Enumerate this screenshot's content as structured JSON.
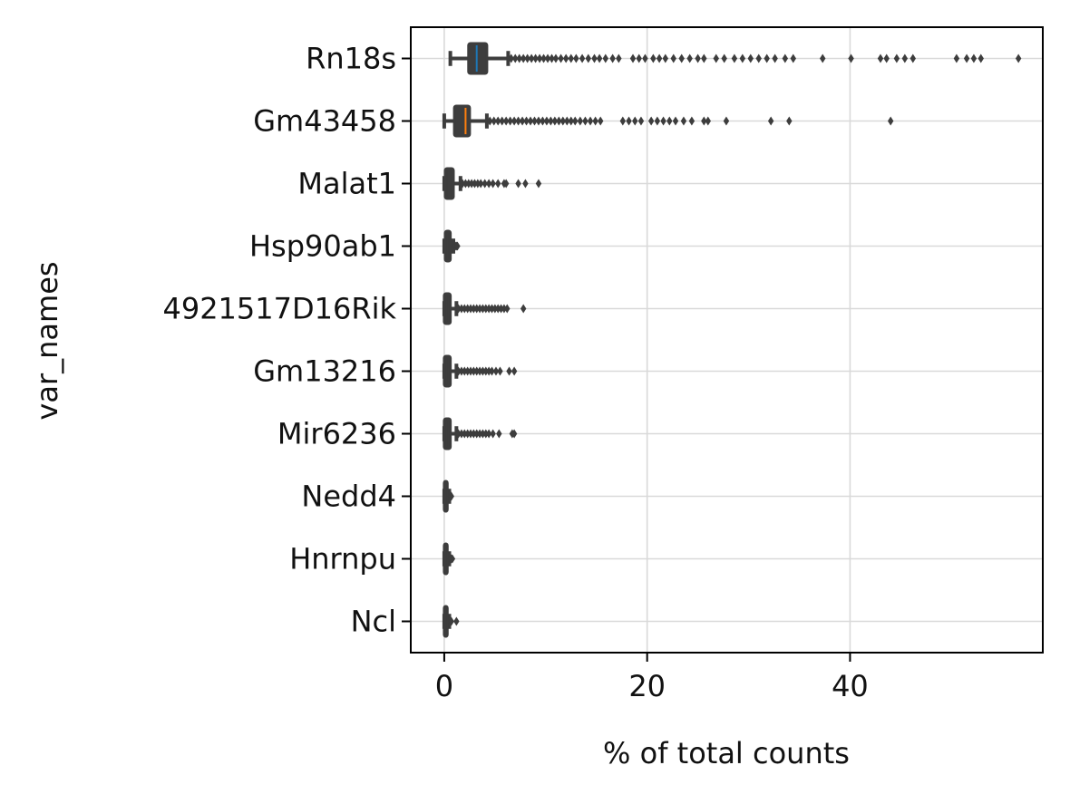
{
  "chart_data": {
    "type": "box",
    "orientation": "horizontal",
    "xlabel": "% of total counts",
    "ylabel": "var_names",
    "xlim": [
      -3.3,
      59.0
    ],
    "xticks": [
      0,
      20,
      40
    ],
    "grid": true,
    "colors": {
      "box": "#3d3d3d",
      "Rn18s_median": "#1f77b4",
      "Gm43458_median": "#ff7f0e",
      "grid": "#d9d9d9",
      "flier": "#3d3d3d"
    },
    "categories": [
      "Rn18s",
      "Gm43458",
      "Malat1",
      "Hsp90ab1",
      "4921517D16Rik",
      "Gm13216",
      "Mir6236",
      "Nedd4",
      "Hnrnpu",
      "Ncl"
    ],
    "series": [
      {
        "label": "Rn18s",
        "whisker_low": 0.6,
        "q1": 2.4,
        "median": 3.2,
        "q3": 4.2,
        "whisker_high": 6.3,
        "fliers": [
          6.6,
          7.0,
          7.4,
          7.8,
          8.2,
          8.6,
          9.0,
          9.4,
          9.8,
          10.2,
          10.6,
          11.0,
          11.5,
          12.0,
          12.5,
          13.0,
          13.6,
          14.2,
          14.8,
          15.3,
          15.9,
          16.6,
          17.2,
          18.6,
          19.2,
          19.8,
          20.6,
          21.2,
          21.8,
          22.6,
          23.4,
          24.2,
          25.0,
          25.6,
          26.8,
          27.6,
          28.6,
          29.4,
          30.2,
          31.0,
          31.8,
          32.6,
          33.6,
          34.4,
          37.3,
          40.1,
          43.0,
          43.6,
          44.6,
          45.4,
          46.2,
          50.5,
          51.5,
          52.2,
          52.9,
          56.6
        ]
      },
      {
        "label": "Gm43458",
        "whisker_low": 0.0,
        "q1": 1.0,
        "median": 2.1,
        "q3": 2.5,
        "whisker_high": 4.2,
        "fliers": [
          4.5,
          4.9,
          5.3,
          5.7,
          6.1,
          6.5,
          6.9,
          7.3,
          7.7,
          8.1,
          8.5,
          8.9,
          9.3,
          9.7,
          10.1,
          10.5,
          10.9,
          11.3,
          11.7,
          12.1,
          12.5,
          12.9,
          13.4,
          13.9,
          14.4,
          14.9,
          15.4,
          17.6,
          18.2,
          18.8,
          19.4,
          20.4,
          21.0,
          21.6,
          22.2,
          22.8,
          23.6,
          24.4,
          25.6,
          26.0,
          27.8,
          32.2,
          34.0,
          44.0
        ]
      },
      {
        "label": "Malat1",
        "whisker_low": 0.0,
        "q1": 0.1,
        "median": 0.4,
        "q3": 0.9,
        "whisker_high": 1.6,
        "fliers": [
          1.8,
          2.1,
          2.4,
          2.7,
          3.0,
          3.3,
          3.6,
          4.0,
          4.4,
          4.8,
          5.3,
          5.9,
          6.1,
          7.3,
          8.0,
          9.3
        ]
      },
      {
        "label": "Hsp90ab1",
        "whisker_low": 0.0,
        "q1": 0.1,
        "median": 0.3,
        "q3": 0.6,
        "whisker_high": 0.9,
        "fliers": [
          1.0,
          1.1,
          1.2,
          1.3
        ]
      },
      {
        "label": "4921517D16Rik",
        "whisker_low": 0.0,
        "q1": 0.0,
        "median": 0.2,
        "q3": 0.6,
        "whisker_high": 1.2,
        "fliers": [
          1.4,
          1.7,
          2.0,
          2.3,
          2.6,
          2.9,
          3.2,
          3.5,
          3.8,
          4.1,
          4.4,
          4.7,
          5.0,
          5.3,
          5.6,
          5.9,
          6.2,
          7.8
        ]
      },
      {
        "label": "Gm13216",
        "whisker_low": 0.0,
        "q1": 0.0,
        "median": 0.2,
        "q3": 0.6,
        "whisker_high": 1.2,
        "fliers": [
          1.4,
          1.7,
          2.0,
          2.3,
          2.6,
          2.9,
          3.2,
          3.5,
          3.8,
          4.1,
          4.4,
          4.7,
          5.1,
          5.5,
          6.4,
          6.9
        ]
      },
      {
        "label": "Mir6236",
        "whisker_low": 0.0,
        "q1": 0.0,
        "median": 0.2,
        "q3": 0.6,
        "whisker_high": 1.2,
        "fliers": [
          1.4,
          1.7,
          2.0,
          2.3,
          2.6,
          2.9,
          3.2,
          3.5,
          3.8,
          4.1,
          4.4,
          4.8,
          5.4,
          6.7,
          6.9
        ]
      },
      {
        "label": "Nedd4",
        "whisker_low": 0.0,
        "q1": 0.0,
        "median": 0.1,
        "q3": 0.3,
        "whisker_high": 0.5,
        "fliers": [
          0.6,
          0.7
        ]
      },
      {
        "label": "Hnrnpu",
        "whisker_low": 0.0,
        "q1": 0.0,
        "median": 0.1,
        "q3": 0.3,
        "whisker_high": 0.5,
        "fliers": [
          0.6,
          0.7,
          0.8
        ]
      },
      {
        "label": "Ncl",
        "whisker_low": 0.0,
        "q1": 0.0,
        "median": 0.1,
        "q3": 0.3,
        "whisker_high": 0.5,
        "fliers": [
          0.7,
          1.2
        ]
      }
    ]
  }
}
